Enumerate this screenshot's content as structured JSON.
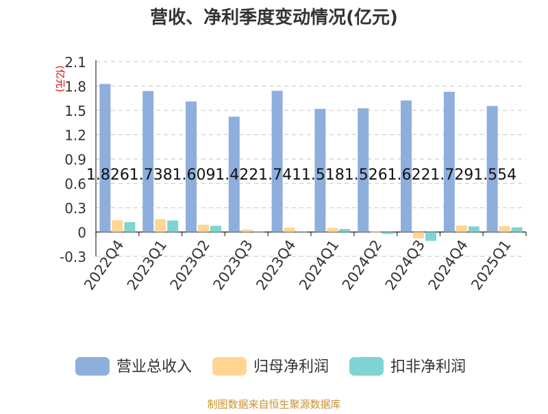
{
  "chart_data": {
    "type": "bar",
    "title": "营收、净利季度变动情况(亿元)",
    "ylabel": "(亿元)",
    "xlabel": "",
    "categories": [
      "2022Q4",
      "2023Q1",
      "2023Q2",
      "2023Q3",
      "2023Q4",
      "2024Q1",
      "2024Q2",
      "2024Q3",
      "2024Q4",
      "2025Q1"
    ],
    "series": [
      {
        "name": "营业总收入",
        "color": "#8eaedc",
        "values": [
          1.826,
          1.738,
          1.609,
          1.422,
          1.741,
          1.518,
          1.526,
          1.622,
          1.729,
          1.554
        ],
        "labels": [
          "1.826",
          "1.738",
          "1.609",
          "1.422",
          "1.741",
          "1.518",
          "1.526",
          "1.622",
          "1.729",
          "1.554"
        ]
      },
      {
        "name": "归母净利润",
        "color": "#ffd591",
        "values": [
          0.145,
          0.158,
          0.091,
          0.032,
          0.054,
          0.051,
          0.003,
          -0.078,
          0.081,
          0.072
        ]
      },
      {
        "name": "扣非净利润",
        "color": "#7fd3d3",
        "values": [
          0.122,
          0.142,
          0.077,
          0.006,
          0.008,
          0.038,
          -0.024,
          -0.109,
          0.068,
          0.058
        ]
      }
    ],
    "yticks": [
      "-0.3",
      "0",
      "0.3",
      "0.6",
      "0.9",
      "1.2",
      "1.5",
      "1.8",
      "2.1"
    ],
    "ylim": [
      -0.3,
      2.1
    ],
    "grid": true,
    "legend_position": "bottom"
  },
  "footer": {
    "source": "制图数据来自恒生聚源数据库"
  }
}
